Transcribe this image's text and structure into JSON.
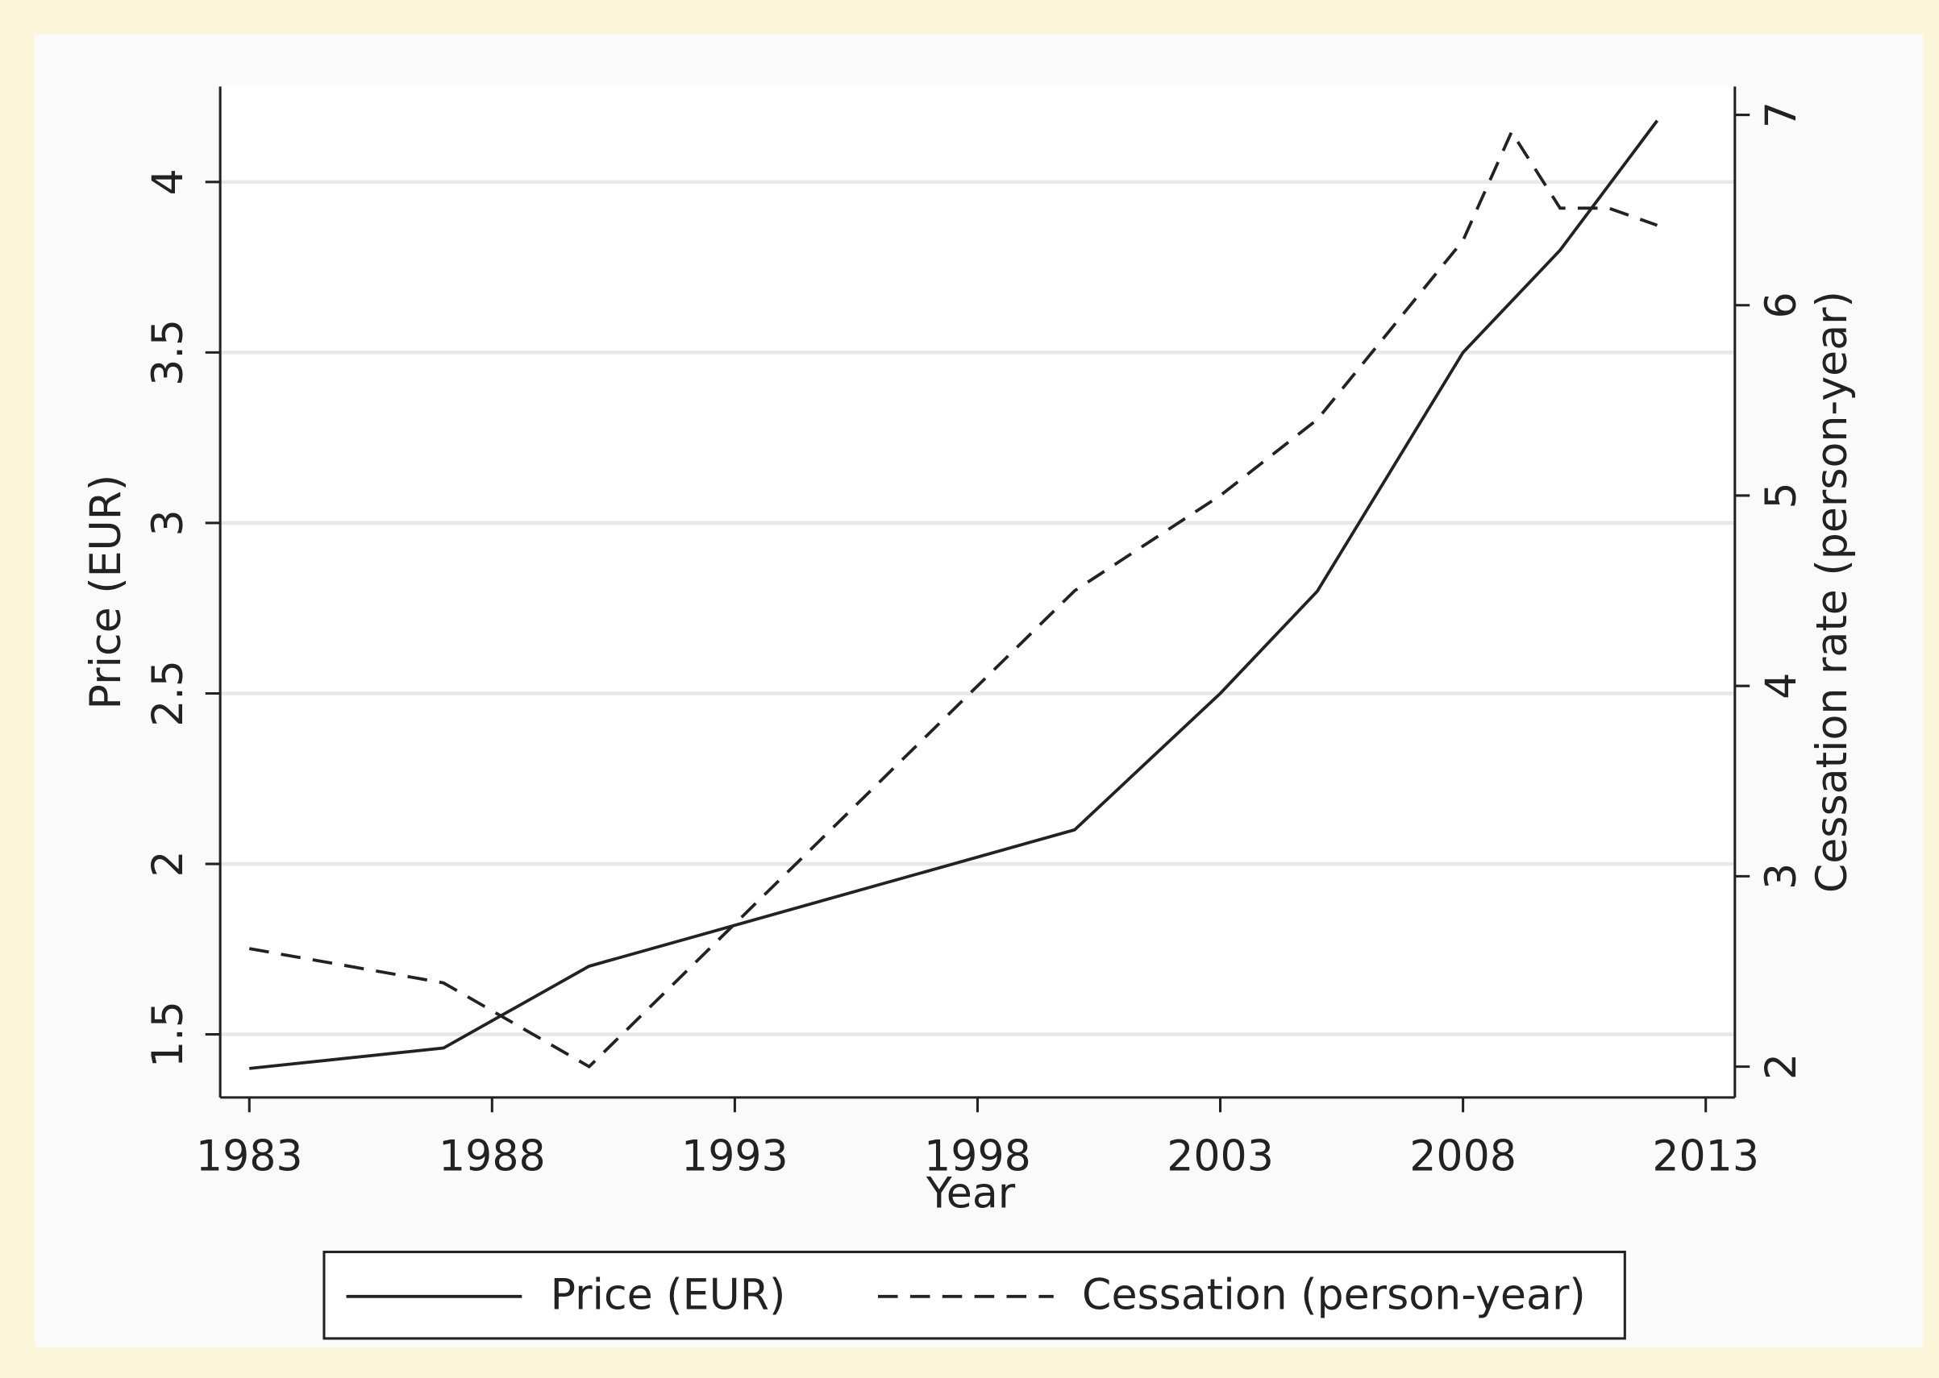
{
  "chart_data": {
    "type": "line",
    "x_label": "Year",
    "y_label": "Price (EUR)",
    "y2_label": "Cessation rate (person-year)",
    "series": [
      {
        "name": "Price (EUR)",
        "color": "#222222",
        "dash": "solid",
        "x": [
          1983,
          1987,
          1990,
          2000,
          2003,
          2005,
          2008,
          2010,
          2012
        ],
        "values": [
          1.4,
          1.46,
          1.7,
          2.1,
          2.5,
          2.8,
          3.5,
          3.8,
          4.18
        ]
      },
      {
        "name": "Cessation (person-year)",
        "color": "#222222",
        "dash": "dashed",
        "axis": "y2",
        "x": [
          1983,
          1987,
          1990,
          1993,
          2000,
          2003,
          2005,
          2008,
          2009,
          2010,
          2011,
          2012
        ],
        "values": [
          2.62,
          2.44,
          2.0,
          2.75,
          4.5,
          5.0,
          5.4,
          6.34,
          6.91,
          6.51,
          6.51,
          6.42
        ]
      }
    ],
    "xlim": [
      1982.4,
      2013.6
    ],
    "xticks": [
      1983,
      1988,
      1993,
      1998,
      2003,
      2008,
      2013
    ],
    "ylim": [
      1.315,
      4.28
    ],
    "yticks": [
      1.5,
      2,
      2.5,
      3,
      3.5,
      4
    ],
    "y2lim": [
      1.838,
      7.149
    ],
    "y2ticks": [
      2,
      3,
      4,
      5,
      6,
      7
    ],
    "grid": true,
    "legend": "bottom"
  }
}
